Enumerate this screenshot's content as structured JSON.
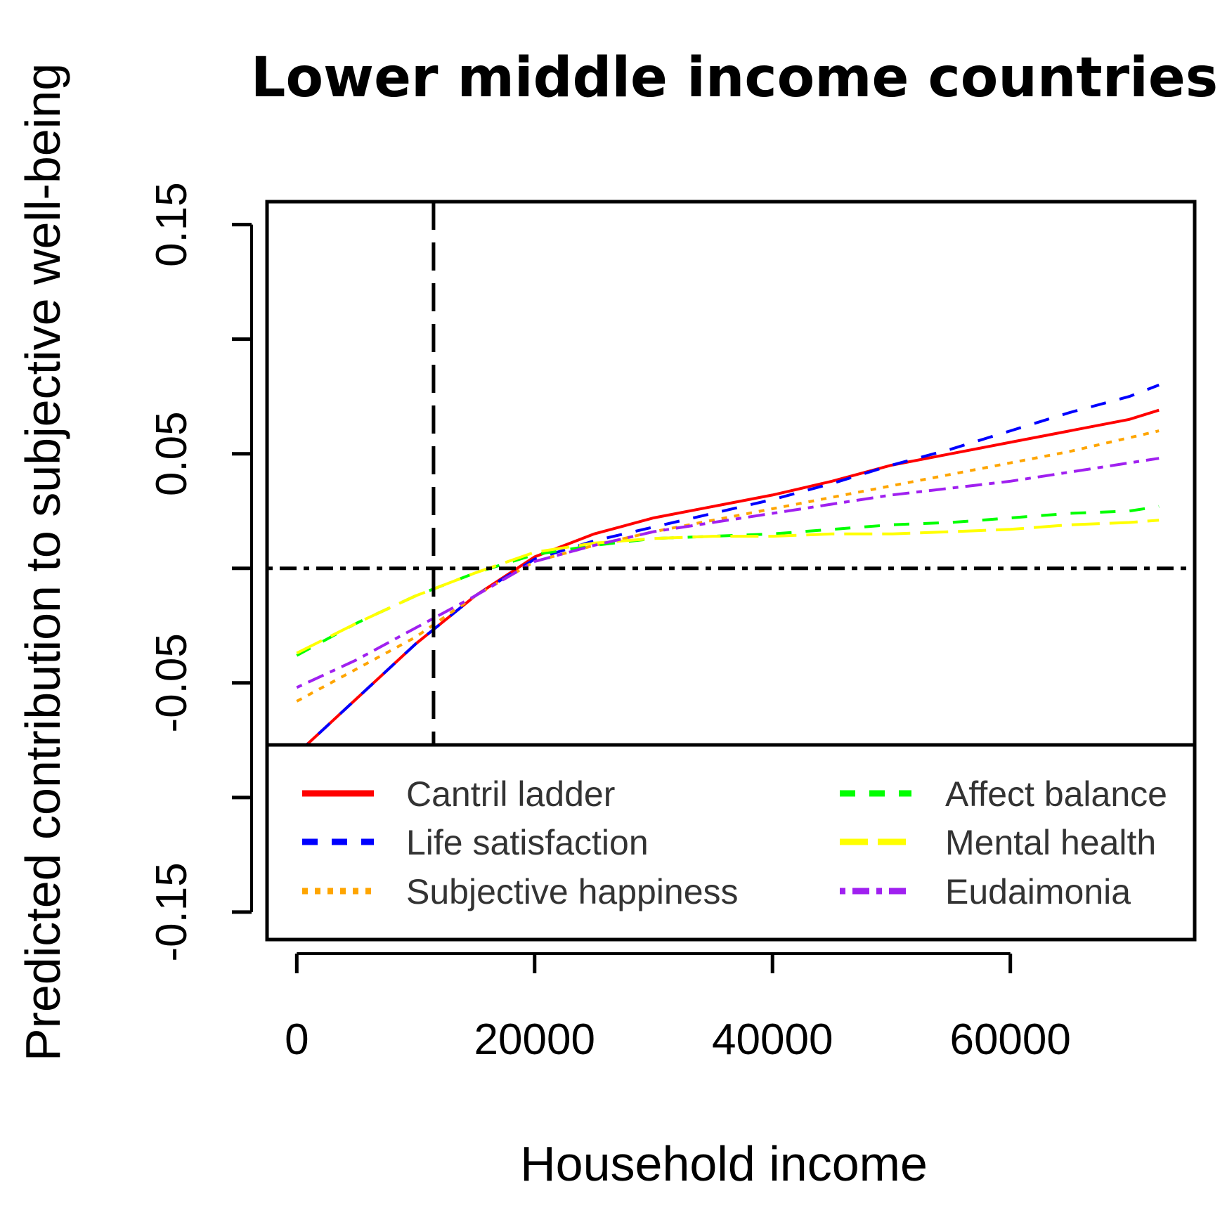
{
  "chart_data": {
    "type": "line",
    "title": "Lower middle income countries",
    "xlabel": "Household income",
    "ylabel": "Predicted contribution to subjective well-being",
    "xlim": [
      -2500,
      75500
    ],
    "ylim": [
      -0.162,
      0.16
    ],
    "x_ticks": [
      0,
      20000,
      40000,
      60000
    ],
    "x_tick_labels": [
      "0",
      "20000",
      "40000",
      "60000"
    ],
    "y_ticks": [
      -0.15,
      -0.1,
      -0.05,
      0,
      0.05,
      0.1,
      0.15
    ],
    "y_tick_labels": [
      "-0.15",
      "",
      "-0.05",
      "",
      "0.05",
      "",
      "0.15"
    ],
    "reference_lines": {
      "horizontal": {
        "y": 0,
        "style": "dotdash"
      },
      "vertical": {
        "x": 11500,
        "style": "dashed"
      }
    },
    "grid": false,
    "legend_position": "bottom",
    "x": [
      0,
      5000,
      10000,
      15000,
      20000,
      25000,
      30000,
      35000,
      40000,
      45000,
      50000,
      55000,
      60000,
      65000,
      70000,
      72500
    ],
    "series": [
      {
        "name": "Cantril ladder",
        "color": "#ff0000",
        "dash": "solid",
        "values": [
          -0.081,
          -0.057,
          -0.033,
          -0.012,
          0.005,
          0.015,
          0.022,
          0.027,
          0.032,
          0.038,
          0.045,
          0.05,
          0.055,
          0.06,
          0.065,
          0.069
        ]
      },
      {
        "name": "Life satisfaction",
        "color": "#0000ff",
        "dash": "dashed",
        "values": [
          -0.081,
          -0.057,
          -0.033,
          -0.012,
          0.004,
          0.012,
          0.018,
          0.024,
          0.03,
          0.037,
          0.045,
          0.052,
          0.06,
          0.068,
          0.075,
          0.08
        ]
      },
      {
        "name": "Subjective happiness",
        "color": "#ffa500",
        "dash": "dotted",
        "values": [
          -0.058,
          -0.044,
          -0.03,
          -0.012,
          0.003,
          0.01,
          0.016,
          0.021,
          0.026,
          0.031,
          0.036,
          0.041,
          0.046,
          0.051,
          0.057,
          0.06
        ]
      },
      {
        "name": "Affect balance",
        "color": "#00ff00",
        "dash": "dashed",
        "values": [
          -0.038,
          -0.024,
          -0.012,
          -0.002,
          0.006,
          0.01,
          0.013,
          0.014,
          0.015,
          0.017,
          0.019,
          0.02,
          0.022,
          0.024,
          0.025,
          0.027
        ]
      },
      {
        "name": "Mental health",
        "color": "#ffff00",
        "dash": "longdash",
        "values": [
          -0.037,
          -0.024,
          -0.012,
          -0.002,
          0.007,
          0.011,
          0.013,
          0.014,
          0.014,
          0.015,
          0.015,
          0.016,
          0.017,
          0.019,
          0.02,
          0.021
        ]
      },
      {
        "name": "Eudaimonia",
        "color": "#a020f0",
        "dash": "dotdash",
        "values": [
          -0.052,
          -0.04,
          -0.026,
          -0.012,
          0.003,
          0.01,
          0.016,
          0.02,
          0.024,
          0.028,
          0.032,
          0.035,
          0.038,
          0.042,
          0.046,
          0.048
        ]
      }
    ]
  }
}
